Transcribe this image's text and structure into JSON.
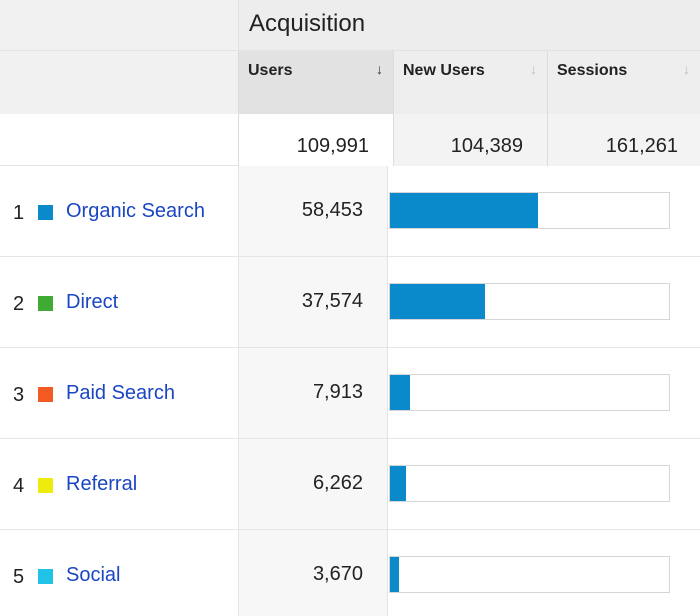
{
  "group": {
    "title": "Acquisition"
  },
  "columns": [
    {
      "label": "Users",
      "sort_icon": "↓",
      "active": true
    },
    {
      "label": "New Users",
      "sort_icon": "↓",
      "active": false
    },
    {
      "label": "Sessions",
      "sort_icon": "↓",
      "active": false
    }
  ],
  "totals": {
    "users": "109,991",
    "new_users": "104,389",
    "sessions": "161,261"
  },
  "bar_color": "#0b8acb",
  "rows": [
    {
      "index": "1",
      "channel": "Organic Search",
      "swatch": "#0b8acb",
      "users": "58,453",
      "share": 0.531
    },
    {
      "index": "2",
      "channel": "Direct",
      "swatch": "#3fab35",
      "users": "37,574",
      "share": 0.342
    },
    {
      "index": "3",
      "channel": "Paid Search",
      "swatch": "#f35a24",
      "users": "7,913",
      "share": 0.072
    },
    {
      "index": "4",
      "channel": "Referral",
      "swatch": "#eeec0d",
      "users": "6,262",
      "share": 0.057
    },
    {
      "index": "5",
      "channel": "Social",
      "swatch": "#20c3e6",
      "users": "3,670",
      "share": 0.033
    }
  ]
}
